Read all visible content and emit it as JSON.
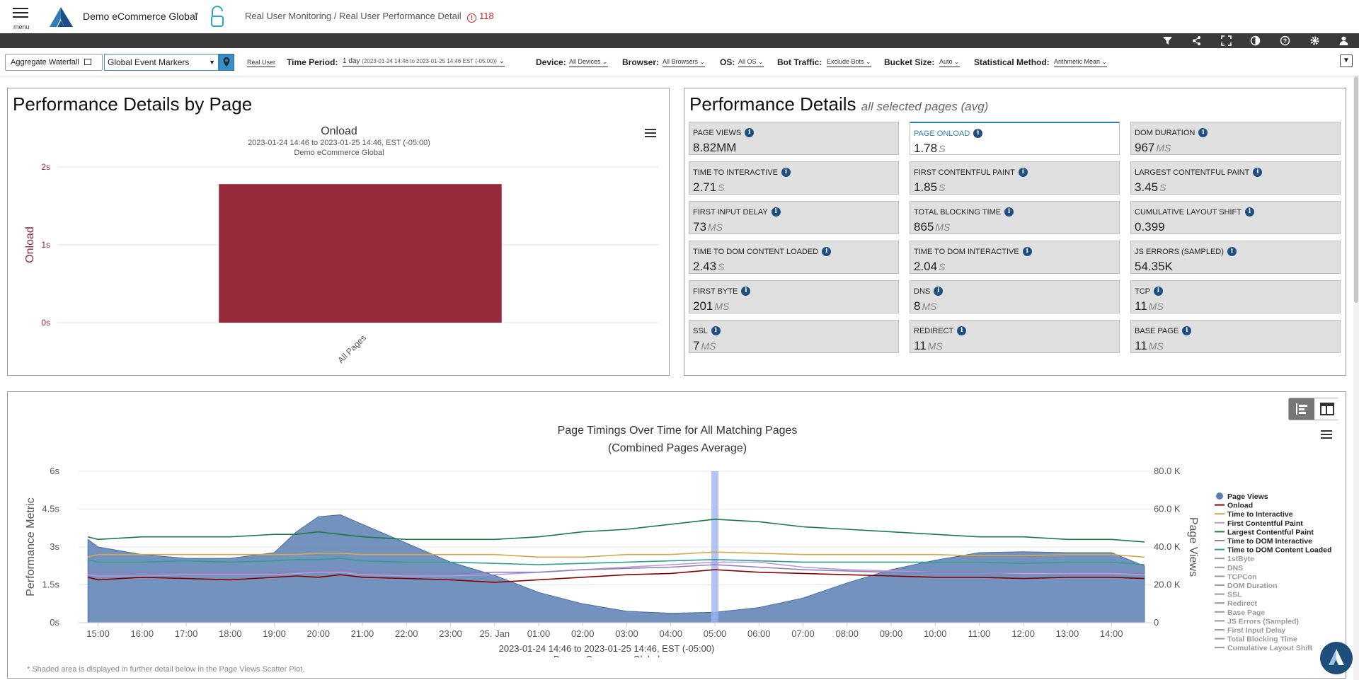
{
  "header": {
    "menu_label": "menu",
    "app_name": "Demo eCommerce Global",
    "breadcrumb": "Real User Monitoring / Real User Performance Detail",
    "alert_count": "118"
  },
  "filters": {
    "aggregate_waterfall": "Aggregate Waterfall",
    "event_markers": "Global Event Markers",
    "data_source": "Real User",
    "time_period_label": "Time Period:",
    "time_period_value": "1 day",
    "time_period_range": "(2023-01-24 14:46 to 2023-01-25 14:46 EST (-05:00))",
    "device_label": "Device:",
    "device_value": "All Devices",
    "browser_label": "Browser:",
    "browser_value": "All Browsers",
    "os_label": "OS:",
    "os_value": "All OS",
    "bot_label": "Bot Traffic:",
    "bot_value": "Exclude Bots",
    "bucket_label": "Bucket Size:",
    "bucket_value": "Auto",
    "stat_label": "Statistical Method:",
    "stat_value": "Arithmetic Mean"
  },
  "left_panel": {
    "title": "Performance Details by Page"
  },
  "right_panel": {
    "title": "Performance Details",
    "subtitle": "all selected pages (avg)",
    "metrics": [
      {
        "label": "PAGE VIEWS",
        "value": "8.82MM",
        "unit": ""
      },
      {
        "label": "PAGE ONLOAD",
        "value": "1.78",
        "unit": "S"
      },
      {
        "label": "DOM DURATION",
        "value": "967",
        "unit": "MS"
      },
      {
        "label": "TIME TO INTERACTIVE",
        "value": "2.71",
        "unit": "S"
      },
      {
        "label": "FIRST CONTENTFUL PAINT",
        "value": "1.85",
        "unit": "S"
      },
      {
        "label": "LARGEST CONTENTFUL PAINT",
        "value": "3.45",
        "unit": "S"
      },
      {
        "label": "FIRST INPUT DELAY",
        "value": "73",
        "unit": "MS"
      },
      {
        "label": "TOTAL BLOCKING TIME",
        "value": "865",
        "unit": "MS"
      },
      {
        "label": "CUMULATIVE LAYOUT SHIFT",
        "value": "0.399",
        "unit": ""
      },
      {
        "label": "TIME TO DOM CONTENT LOADED",
        "value": "2.43",
        "unit": "S"
      },
      {
        "label": "TIME TO DOM INTERACTIVE",
        "value": "2.04",
        "unit": "S"
      },
      {
        "label": "JS ERRORS (SAMPLED)",
        "value": "54.35K",
        "unit": ""
      },
      {
        "label": "FIRST BYTE",
        "value": "201",
        "unit": "MS"
      },
      {
        "label": "DNS",
        "value": "8",
        "unit": "MS"
      },
      {
        "label": "TCP",
        "value": "11",
        "unit": "MS"
      },
      {
        "label": "SSL",
        "value": "7",
        "unit": "MS"
      },
      {
        "label": "REDIRECT",
        "value": "11",
        "unit": "MS"
      },
      {
        "label": "BASE PAGE",
        "value": "11",
        "unit": "MS"
      }
    ],
    "selected_index": 1
  },
  "bottom_panel": {
    "footnote": "* Shaded area is displayed in further detail below in the Page Views Scatter Plot."
  },
  "colors": {
    "onload_bar": "#96293a",
    "page_views_area": "#5b7fb2",
    "highlight_band": "#9db4f5",
    "accent": "#2f7db8"
  },
  "chart_data": [
    {
      "type": "bar",
      "title": "Onload",
      "subtitle": "2023-01-24 14:46 to 2023-01-25 14:46, EST (-05:00)",
      "subtitle2": "Demo eCommerce Global",
      "categories": [
        "All Pages"
      ],
      "values": [
        1.78
      ],
      "ylabel": "Onload",
      "ylim": [
        0,
        2
      ],
      "yticks": [
        "0s",
        "1s",
        "2s"
      ],
      "yticks_values": [
        0,
        1,
        2
      ],
      "grid": true
    },
    {
      "type": "line",
      "title": "Page Timings Over Time for All Matching Pages",
      "subtitle": "(Combined Pages Average)",
      "xlabel_line1": "2023-01-24 14:46 to 2023-01-25 14:46, EST (-05:00)",
      "xlabel_line2": "Demo eCommerce Global",
      "ylabel_left": "Performance Metric",
      "ylabel_right": "Page Views",
      "ylim_left": [
        0,
        6
      ],
      "ylim_right": [
        0,
        80000
      ],
      "yticks_left": [
        "0s",
        "1.5s",
        "3s",
        "4.5s",
        "6s"
      ],
      "yticks_right": [
        "0",
        "20.0 K",
        "40.0 K",
        "60.0 K",
        "80.0 K"
      ],
      "x_ticks": [
        "15:00",
        "16:00",
        "17:00",
        "18:00",
        "19:00",
        "20:00",
        "21:00",
        "22:00",
        "23:00",
        "25. Jan",
        "01:00",
        "02:00",
        "03:00",
        "04:00",
        "05:00",
        "06:00",
        "07:00",
        "08:00",
        "09:00",
        "10:00",
        "11:00",
        "12:00",
        "13:00",
        "14:00"
      ],
      "x_hours": [
        14.77,
        15,
        16,
        17,
        18,
        19,
        19.5,
        20,
        20.5,
        21,
        22,
        23,
        24,
        25,
        26,
        27,
        28,
        29,
        30,
        31,
        32,
        33,
        34,
        35,
        36,
        37,
        38,
        38.75
      ],
      "highlight_hour": 29,
      "series": [
        {
          "name": "Page Views",
          "axis": "right",
          "kind": "area",
          "color": "#5b7fb2",
          "values": [
            44000,
            40000,
            36000,
            34000,
            34000,
            37000,
            48000,
            56000,
            57000,
            52000,
            42000,
            32000,
            25000,
            16000,
            10000,
            6000,
            5000,
            5500,
            8000,
            13000,
            21000,
            28000,
            33000,
            37000,
            37500,
            37000,
            37000,
            30000
          ]
        },
        {
          "name": "Onload",
          "axis": "left",
          "kind": "line",
          "color": "#8b0000",
          "values": [
            1.8,
            1.7,
            1.8,
            1.75,
            1.7,
            1.8,
            1.85,
            1.8,
            1.9,
            1.8,
            1.75,
            1.7,
            1.6,
            1.7,
            1.8,
            1.9,
            1.95,
            2.1,
            2.0,
            1.95,
            1.9,
            1.85,
            1.8,
            1.8,
            1.75,
            1.8,
            1.8,
            1.75
          ]
        },
        {
          "name": "Time to Interactive",
          "axis": "left",
          "kind": "line",
          "color": "#d4a94a",
          "values": [
            2.6,
            2.7,
            2.7,
            2.7,
            2.7,
            2.7,
            2.7,
            2.75,
            2.75,
            2.7,
            2.7,
            2.7,
            2.7,
            2.6,
            2.6,
            2.7,
            2.7,
            2.8,
            2.75,
            2.7,
            2.7,
            2.7,
            2.7,
            2.65,
            2.65,
            2.7,
            2.7,
            2.6
          ]
        },
        {
          "name": "First Contentful Paint",
          "axis": "left",
          "kind": "line",
          "color": "#b79ad6",
          "values": [
            1.9,
            1.85,
            1.85,
            1.9,
            1.9,
            1.9,
            1.95,
            2.0,
            2.0,
            1.9,
            1.85,
            1.85,
            1.9,
            2.0,
            2.1,
            2.2,
            2.3,
            2.4,
            2.4,
            2.2,
            2.1,
            2.05,
            2.0,
            2.0,
            1.95,
            1.95,
            1.95,
            1.9
          ]
        },
        {
          "name": "Largest Contentful Paint",
          "axis": "left",
          "kind": "line",
          "color": "#1d7a48",
          "values": [
            3.4,
            3.3,
            3.4,
            3.4,
            3.4,
            3.5,
            3.5,
            3.6,
            3.5,
            3.4,
            3.3,
            3.3,
            3.3,
            3.4,
            3.6,
            3.7,
            3.9,
            4.1,
            4.0,
            3.8,
            3.7,
            3.6,
            3.5,
            3.4,
            3.4,
            3.3,
            3.3,
            3.2
          ]
        },
        {
          "name": "Time to DOM Interactive",
          "axis": "left",
          "kind": "line",
          "color": "#8e7dbe",
          "values": [
            2.0,
            2.0,
            2.0,
            2.0,
            2.0,
            2.0,
            2.05,
            2.05,
            2.1,
            2.0,
            2.0,
            1.95,
            2.0,
            2.0,
            2.1,
            2.15,
            2.2,
            2.3,
            2.2,
            2.1,
            2.05,
            2.0,
            2.0,
            2.0,
            2.0,
            2.0,
            2.0,
            1.95
          ]
        },
        {
          "name": "Time to DOM Content Loaded",
          "axis": "left",
          "kind": "line",
          "color": "#2fa08e",
          "values": [
            2.5,
            2.4,
            2.4,
            2.45,
            2.4,
            2.45,
            2.5,
            2.5,
            2.55,
            2.45,
            2.4,
            2.4,
            2.35,
            2.3,
            2.35,
            2.4,
            2.45,
            2.5,
            2.45,
            2.4,
            2.4,
            2.4,
            2.4,
            2.4,
            2.35,
            2.4,
            2.4,
            2.3
          ]
        }
      ],
      "legend": [
        {
          "name": "Page Views",
          "color": "#5b7fb2",
          "active": true,
          "marker": "circle"
        },
        {
          "name": "Onload",
          "color": "#8b0000",
          "active": true
        },
        {
          "name": "Time to Interactive",
          "color": "#d4a94a",
          "active": true
        },
        {
          "name": "First Contentful Paint",
          "color": "#b79ad6",
          "active": true
        },
        {
          "name": "Largest Contentful Paint",
          "color": "#1d7a48",
          "active": true
        },
        {
          "name": "Time to DOM Interactive",
          "color": "#8e7dbe",
          "active": true
        },
        {
          "name": "Time to DOM Content Loaded",
          "color": "#2fa08e",
          "active": true
        },
        {
          "name": "1stByte",
          "color": "#999999",
          "active": false
        },
        {
          "name": "DNS",
          "color": "#999999",
          "active": false
        },
        {
          "name": "TCPCon",
          "color": "#999999",
          "active": false
        },
        {
          "name": "DOM Duration",
          "color": "#999999",
          "active": false
        },
        {
          "name": "SSL",
          "color": "#999999",
          "active": false
        },
        {
          "name": "Redirect",
          "color": "#999999",
          "active": false
        },
        {
          "name": "Base Page",
          "color": "#999999",
          "active": false
        },
        {
          "name": "JS Errors (Sampled)",
          "color": "#999999",
          "active": false
        },
        {
          "name": "First Input Delay",
          "color": "#999999",
          "active": false
        },
        {
          "name": "Total Blocking Time",
          "color": "#999999",
          "active": false
        },
        {
          "name": "Cumulative Layout Shift",
          "color": "#999999",
          "active": false
        }
      ],
      "legend_position": "right"
    }
  ]
}
